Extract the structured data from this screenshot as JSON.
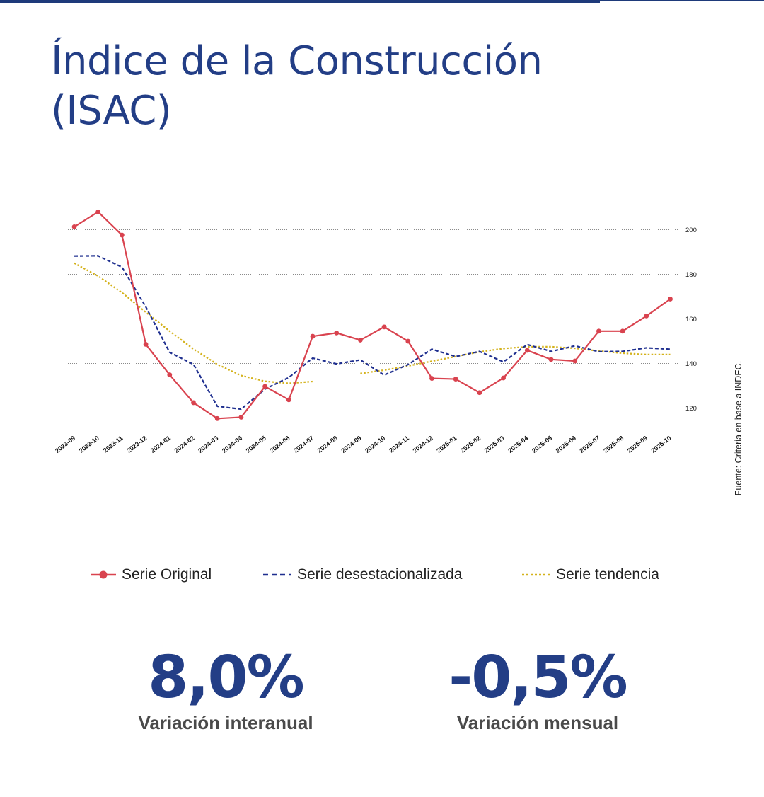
{
  "title": {
    "line1": "Índice de la Construcción",
    "line2": "(ISAC)"
  },
  "source": "Fuente: Criteria en base a INDEC.",
  "colors": {
    "brand": "#233e86",
    "original": "#d9434f",
    "desestacionalizada": "#1f2f8f",
    "tendencia": "#d4b21c"
  },
  "chart_data": {
    "type": "line",
    "categories": [
      "2023-09",
      "2023-10",
      "2023-11",
      "2023-12",
      "2024-01",
      "2024-02",
      "2024-03",
      "2024-04",
      "2024-05",
      "2024-06",
      "2024-07",
      "2024-08",
      "2024-09",
      "2024-10",
      "2024-11",
      "2024-12",
      "2025-01",
      "2025-02",
      "2025-03",
      "2025-04",
      "2025-05",
      "2025-06",
      "2025-07",
      "2025-08",
      "2025-09",
      "2025-10"
    ],
    "y_ticks": [
      120,
      140,
      160,
      180,
      200
    ],
    "ylim": [
      110,
      210
    ],
    "grid": true,
    "y_axis_position": "right",
    "series": [
      {
        "name": "Serie Original",
        "style": "solid-markers",
        "color": "#d9434f",
        "values": [
          201.3,
          208.0,
          197.6,
          148.6,
          134.9,
          122.4,
          115.3,
          115.9,
          129.7,
          123.7,
          152.2,
          153.7,
          150.5,
          156.4,
          150.0,
          133.3,
          133.0,
          126.9,
          133.5,
          145.9,
          141.8,
          141.1,
          154.5,
          154.5,
          161.3,
          168.9
        ]
      },
      {
        "name": "Serie desestacionalizada",
        "style": "dashed",
        "color": "#1f2f8f",
        "values": [
          188.2,
          188.3,
          183.2,
          165.4,
          145.0,
          139.6,
          120.8,
          119.5,
          128.5,
          133.7,
          142.4,
          139.8,
          141.6,
          134.8,
          139.5,
          146.4,
          143.1,
          145.4,
          140.7,
          148.5,
          145.4,
          147.9,
          145.3,
          145.4,
          147.0,
          146.4
        ]
      },
      {
        "name": "Serie tendencia",
        "style": "dotted",
        "color": "#d4b21c",
        "values": [
          185.0,
          179.2,
          171.8,
          163.0,
          154.5,
          146.5,
          139.6,
          134.6,
          132.0,
          131.1,
          131.9,
          null,
          135.5,
          137.0,
          138.9,
          141.0,
          143.1,
          145.2,
          146.7,
          147.5,
          147.5,
          146.8,
          145.6,
          144.6,
          144.0,
          144.0
        ]
      }
    ]
  },
  "kpis": [
    {
      "value": "8,0%",
      "label": "Variación interanual"
    },
    {
      "value": "-0,5%",
      "label": "Variación mensual"
    }
  ]
}
